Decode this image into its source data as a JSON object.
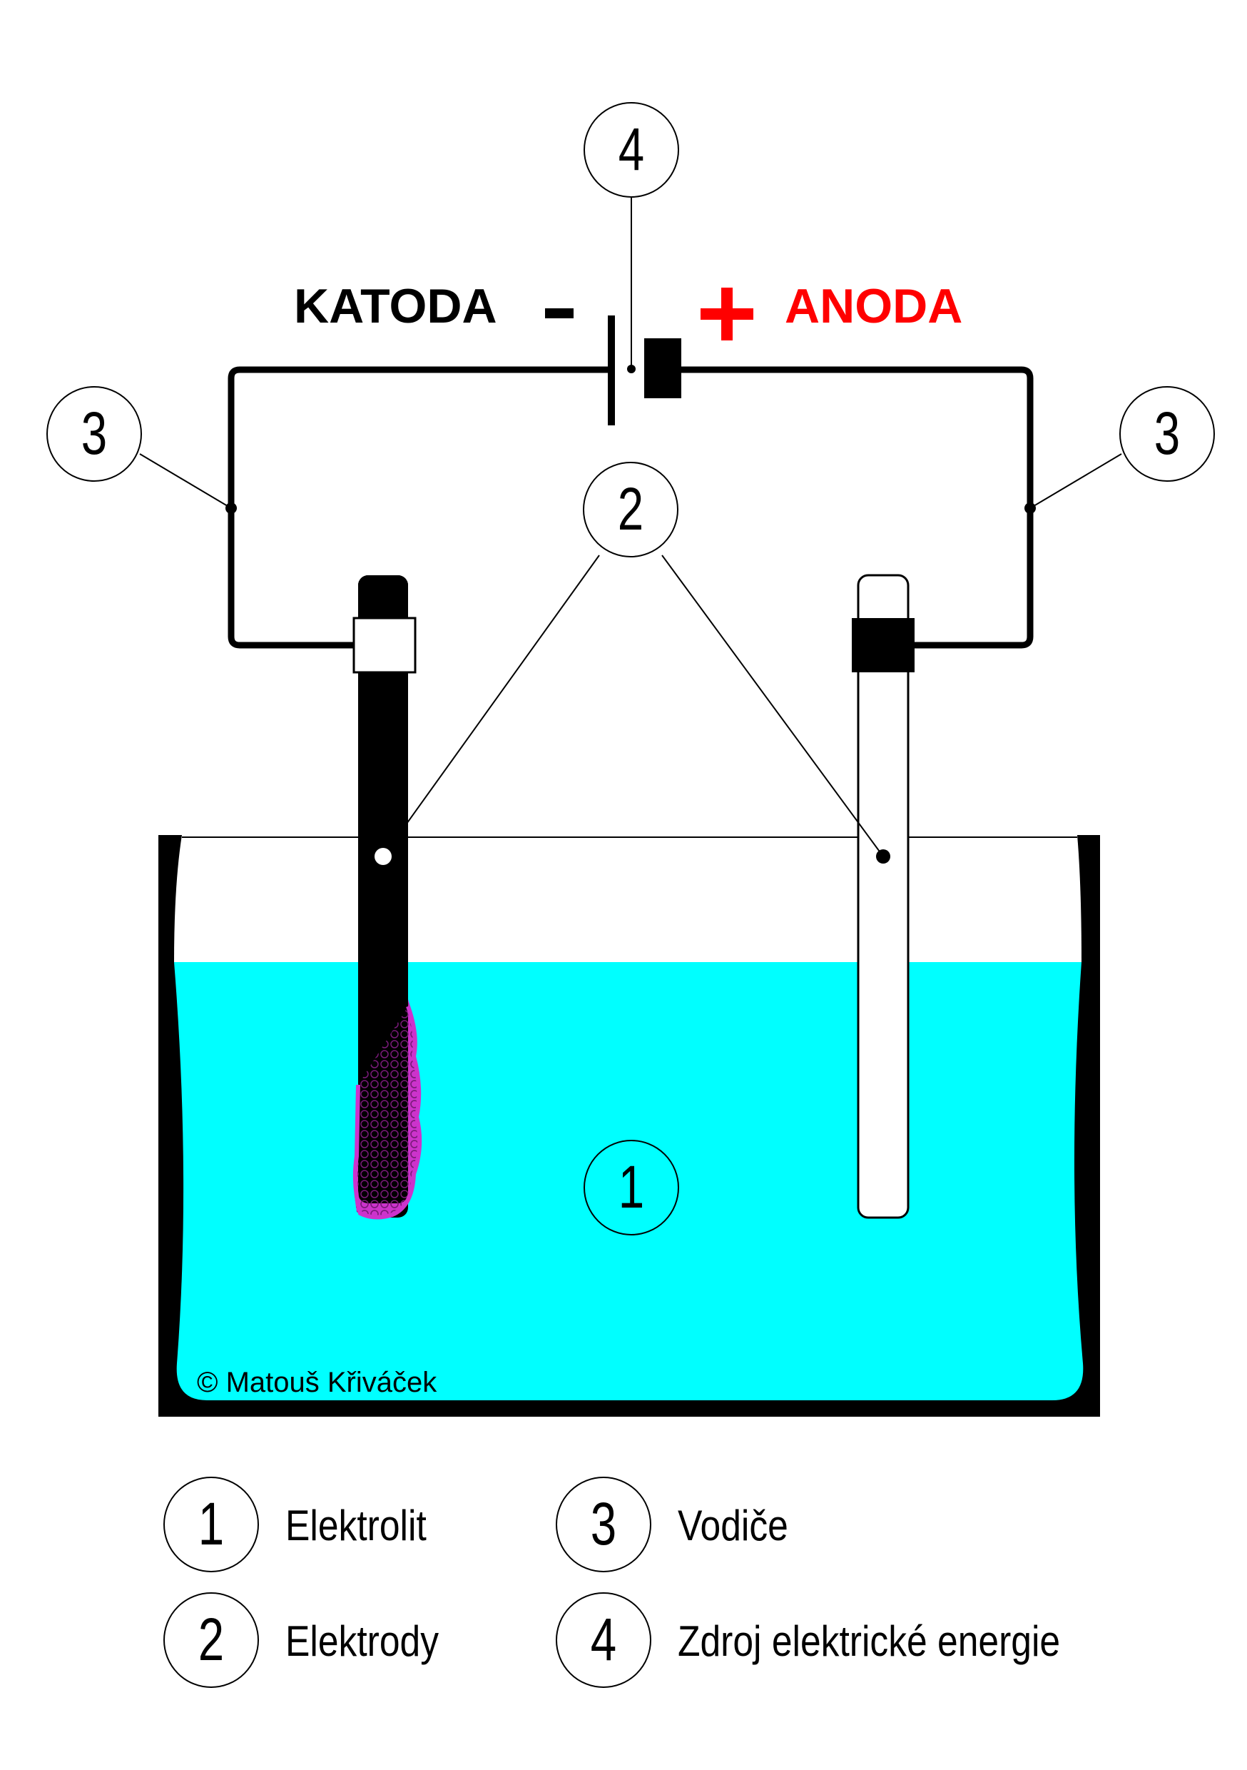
{
  "circuit": {
    "cathode_label": "KATODA",
    "anode_label": "ANODA",
    "minus_sign": "-",
    "plus_sign": "+",
    "cathode_color": "#000000",
    "anode_color": "#ff0000"
  },
  "callouts": {
    "electrolyte": "1",
    "electrodes": "2",
    "wire_left": "3",
    "wire_right": "3",
    "source": "4"
  },
  "copyright": "© Matouš Křiváček",
  "legend": [
    {
      "number": "1",
      "text": "Elektrolit"
    },
    {
      "number": "2",
      "text": "Elektrody"
    },
    {
      "number": "3",
      "text": "Vodiče"
    },
    {
      "number": "4",
      "text": "Zdroj elektrické energie"
    }
  ],
  "colors": {
    "electrolyte": "#00ffff",
    "deposit": "#cc33cc",
    "line": "#000000"
  }
}
